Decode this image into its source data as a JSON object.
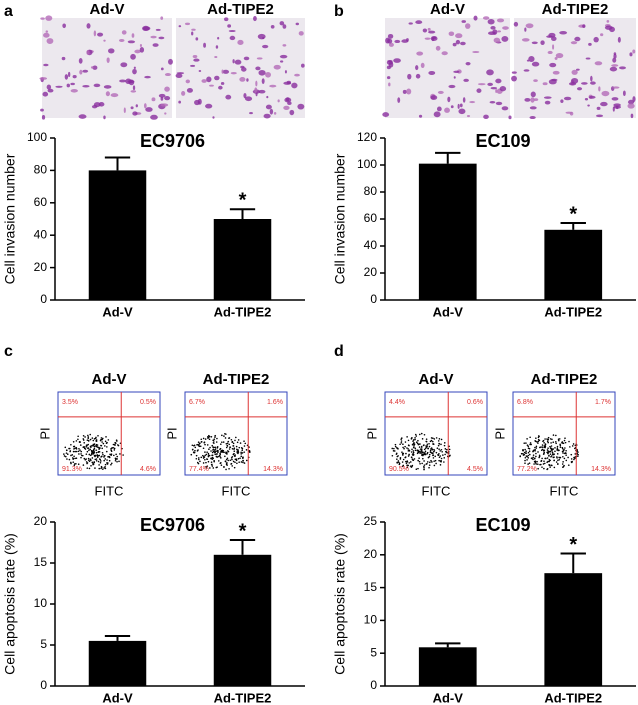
{
  "panels": [
    {
      "letter": "a",
      "image_labels": [
        "Ad-V",
        "Ad-TIPE2"
      ]
    },
    {
      "letter": "b",
      "image_labels": [
        "Ad-V",
        "Ad-TIPE2"
      ]
    },
    {
      "letter": "c",
      "image_labels": [
        "Ad-V",
        "Ad-TIPE2"
      ],
      "flow_x_label": "FITC",
      "flow_y_label": "PI",
      "flow_quadrants": [
        [
          "3.5%",
          "0.5%",
          "91.3%",
          "4.6%"
        ],
        [
          "6.7%",
          "1.6%",
          "77.4%",
          "14.3%"
        ]
      ]
    },
    {
      "letter": "d",
      "image_labels": [
        "Ad-V",
        "Ad-TIPE2"
      ],
      "flow_x_label": "FITC",
      "flow_y_label": "PI",
      "flow_quadrants": [
        [
          "4.4%",
          "0.6%",
          "90.5%",
          "4.5%"
        ],
        [
          "6.8%",
          "1.7%",
          "77.2%",
          "14.3%"
        ]
      ]
    }
  ],
  "chart_data": [
    {
      "type": "bar",
      "title": "EC9706",
      "y_label": "Cell invasion number",
      "categories": [
        "Ad-V",
        "Ad-TIPE2"
      ],
      "values": [
        80,
        50
      ],
      "errors": [
        8,
        6
      ],
      "significance": [
        null,
        "*"
      ],
      "color": "#000000",
      "ylim": [
        0,
        100
      ],
      "yticks": [
        0,
        20,
        40,
        60,
        80,
        100
      ]
    },
    {
      "type": "bar",
      "title": "EC109",
      "y_label": "Cell invasion number",
      "categories": [
        "Ad-V",
        "Ad-TIPE2"
      ],
      "values": [
        101,
        52
      ],
      "errors": [
        8,
        5
      ],
      "significance": [
        null,
        "*"
      ],
      "color": "#000000",
      "ylim": [
        0,
        120
      ],
      "yticks": [
        0,
        20,
        40,
        60,
        80,
        100,
        120
      ]
    },
    {
      "type": "bar",
      "title": "EC9706",
      "y_label": "Cell apoptosis rate (%)",
      "categories": [
        "Ad-V",
        "Ad-TIPE2"
      ],
      "values": [
        5.5,
        16
      ],
      "errors": [
        0.6,
        1.8
      ],
      "significance": [
        null,
        "*"
      ],
      "color": "#000000",
      "ylim": [
        0,
        20
      ],
      "yticks": [
        0,
        5,
        10,
        15,
        20
      ]
    },
    {
      "type": "bar",
      "title": "EC109",
      "y_label": "Cell apoptosis rate (%)",
      "categories": [
        "Ad-V",
        "Ad-TIPE2"
      ],
      "values": [
        5.9,
        17.2
      ],
      "errors": [
        0.6,
        3
      ],
      "significance": [
        null,
        "*"
      ],
      "color": "#000000",
      "ylim": [
        0,
        25
      ],
      "yticks": [
        0,
        5,
        10,
        15,
        20,
        25
      ]
    }
  ]
}
